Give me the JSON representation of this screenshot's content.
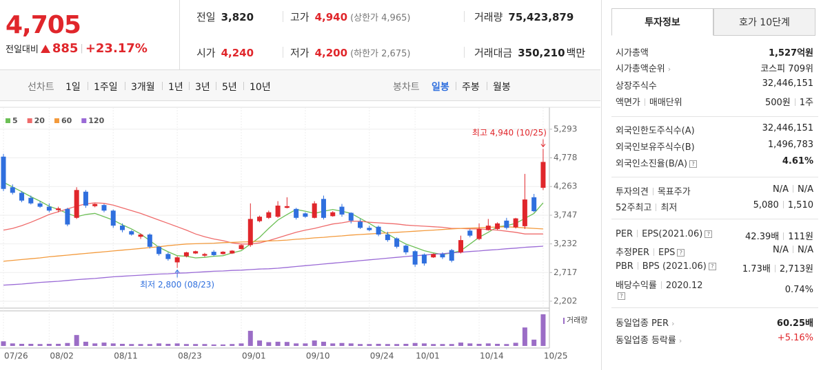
{
  "header": {
    "price": "4,705",
    "change_label": "전일대비",
    "change": "885",
    "rate": "+23.17%"
  },
  "stats": [
    {
      "label": "전일",
      "value": "3,820"
    },
    {
      "label": "고가",
      "value": "4,940",
      "note": "(상한가 4,965)"
    },
    {
      "label": "거래량",
      "value": "75,423,879"
    },
    {
      "label": "시가",
      "value": "4,240"
    },
    {
      "label": "저가",
      "value": "4,200",
      "note": "(하한가 2,675)"
    },
    {
      "label": "거래대금",
      "value": "350,210",
      "unit": "백만"
    }
  ],
  "toolbar": {
    "line_label": "선차트",
    "periods": [
      "1일",
      "1주일",
      "3개월",
      "1년",
      "3년",
      "5년",
      "10년"
    ],
    "candle_label": "봉차트",
    "candle_periods": [
      "일봉",
      "주봉",
      "월봉"
    ]
  },
  "chart_data": {
    "type": "candlestick",
    "categories": [
      "07/26",
      null,
      null,
      null,
      null,
      "08/02",
      null,
      null,
      null,
      null,
      null,
      null,
      "08/11",
      null,
      null,
      null,
      null,
      null,
      null,
      "08/23",
      null,
      null,
      null,
      null,
      null,
      null,
      "09/01",
      null,
      null,
      null,
      null,
      null,
      null,
      "09/10",
      null,
      null,
      null,
      null,
      null,
      null,
      "09/24",
      null,
      null,
      null,
      null,
      "10/01",
      null,
      null,
      null,
      null,
      null,
      null,
      "10/14",
      null,
      null,
      null,
      null,
      null,
      null,
      "10/25"
    ],
    "open": [
      4800,
      4250,
      4150,
      4060,
      3960,
      3900,
      3840,
      3860,
      3700,
      4170,
      3910,
      3930,
      3830,
      3560,
      3460,
      3360,
      3400,
      3180,
      3050,
      2900,
      3010,
      3060,
      3020,
      3090,
      3050,
      3060,
      3140,
      3210,
      3640,
      3700,
      3720,
      3880,
      3860,
      3780,
      3700,
      4040,
      3730,
      3900,
      3790,
      3630,
      3520,
      3540,
      3400,
      3330,
      3200,
      3100,
      3040,
      2990,
      3050,
      3120,
      3080,
      3470,
      3320,
      3480,
      3500,
      3650,
      3530,
      3550,
      4070,
      4240
    ],
    "high": [
      4850,
      4300,
      4180,
      4100,
      4000,
      3960,
      3900,
      3880,
      4250,
      4200,
      3960,
      3950,
      3850,
      3600,
      3480,
      3420,
      3420,
      3200,
      3080,
      3010,
      3090,
      3110,
      3070,
      3120,
      3100,
      3120,
      3220,
      3960,
      3740,
      3830,
      4000,
      4070,
      3880,
      3800,
      4000,
      4100,
      3820,
      3950,
      3800,
      3680,
      3560,
      3560,
      3450,
      3350,
      3220,
      3120,
      3060,
      3060,
      3080,
      3140,
      3380,
      3500,
      3600,
      3680,
      3620,
      3700,
      3700,
      4490,
      4130,
      4940
    ],
    "low": [
      4180,
      4120,
      3980,
      3940,
      3880,
      3800,
      3800,
      3550,
      3680,
      3880,
      3890,
      3800,
      3520,
      3440,
      3380,
      3320,
      3150,
      3020,
      2930,
      2800,
      2990,
      3050,
      3000,
      3010,
      3040,
      3050,
      3130,
      3180,
      3620,
      3680,
      3700,
      3870,
      3670,
      3700,
      3690,
      3670,
      3720,
      3720,
      3600,
      3500,
      3460,
      3370,
      3270,
      3150,
      3040,
      2820,
      2840,
      2980,
      2960,
      2900,
      3060,
      3350,
      3300,
      3470,
      3480,
      3490,
      3510,
      3500,
      3800,
      4200
    ],
    "close": [
      4220,
      4150,
      4010,
      3960,
      3900,
      3830,
      3870,
      3580,
      4200,
      3920,
      3950,
      3830,
      3560,
      3480,
      3400,
      3400,
      3180,
      3050,
      2960,
      2990,
      3080,
      3100,
      3050,
      3030,
      3090,
      3110,
      3210,
      3680,
      3720,
      3800,
      3920,
      3910,
      3700,
      3720,
      3960,
      3700,
      3800,
      3760,
      3650,
      3520,
      3480,
      3400,
      3300,
      3180,
      3080,
      2860,
      2880,
      3050,
      2990,
      2930,
      3300,
      3380,
      3500,
      3560,
      3600,
      3520,
      3690,
      4030,
      3820,
      4705
    ],
    "up_color": "#e0262b",
    "down_color": "#2f6fde",
    "volume": [
      11000000,
      6000000,
      5000000,
      5000000,
      4500000,
      5000000,
      5000000,
      7000000,
      26000000,
      10000000,
      6000000,
      8000000,
      6000000,
      5000000,
      4500000,
      4500000,
      4500000,
      6000000,
      5000000,
      6000000,
      4500000,
      4500000,
      4500000,
      3500000,
      3500000,
      4500000,
      6000000,
      36000000,
      13000000,
      9000000,
      10000000,
      9500000,
      6000000,
      6000000,
      13000000,
      10000000,
      6000000,
      7000000,
      6000000,
      4500000,
      4500000,
      5000000,
      4500000,
      4500000,
      5000000,
      7000000,
      6000000,
      4500000,
      4500000,
      4500000,
      8000000,
      6000000,
      5000000,
      6000000,
      5000000,
      4500000,
      7500000,
      44000000,
      15000000,
      75423879
    ],
    "volume_label": "거래량",
    "volume_color": "#9b6dc6",
    "series": [
      {
        "name": "5",
        "color": "#6cbf55",
        "values": [
          4340,
          4255,
          4170,
          4080,
          4000,
          3910,
          3850,
          3780,
          3720,
          3760,
          3780,
          3720,
          3660,
          3575,
          3500,
          3410,
          3290,
          3170,
          3090,
          3020,
          3010,
          2980,
          2990,
          3010,
          3020,
          3070,
          3110,
          3230,
          3350,
          3510,
          3660,
          3760,
          3850,
          3820,
          3780,
          3820,
          3850,
          3820,
          3780,
          3690,
          3600,
          3500,
          3410,
          3315,
          3230,
          3170,
          3110,
          3070,
          3040,
          3070,
          3110,
          3230,
          3350,
          3440,
          3540,
          3560,
          3600,
          3690,
          3780,
          3970
        ]
      },
      {
        "name": "20",
        "color": "#ef6b6b",
        "values": [
          3480,
          3510,
          3560,
          3620,
          3690,
          3760,
          3810,
          3860,
          3910,
          3950,
          3970,
          3960,
          3930,
          3880,
          3830,
          3780,
          3720,
          3660,
          3600,
          3540,
          3480,
          3410,
          3360,
          3320,
          3290,
          3250,
          3230,
          3230,
          3250,
          3290,
          3340,
          3390,
          3440,
          3480,
          3510,
          3550,
          3590,
          3610,
          3640,
          3640,
          3620,
          3610,
          3600,
          3590,
          3570,
          3560,
          3550,
          3540,
          3530,
          3510,
          3510,
          3500,
          3500,
          3490,
          3480,
          3460,
          3440,
          3410,
          3410,
          3410
        ]
      },
      {
        "name": "60",
        "color": "#f39a3c",
        "values": [
          2920,
          2935,
          2950,
          2965,
          2980,
          3000,
          3015,
          3030,
          3045,
          3060,
          3075,
          3090,
          3105,
          3120,
          3135,
          3150,
          3165,
          3180,
          3200,
          3215,
          3230,
          3235,
          3240,
          3245,
          3255,
          3260,
          3265,
          3270,
          3280,
          3285,
          3290,
          3300,
          3315,
          3325,
          3340,
          3350,
          3365,
          3375,
          3390,
          3400,
          3410,
          3420,
          3430,
          3440,
          3450,
          3460,
          3470,
          3480,
          3490,
          3500,
          3510,
          3515,
          3520,
          3530,
          3535,
          3540,
          3530,
          3520,
          3510,
          3500
        ]
      },
      {
        "name": "120",
        "color": "#9a6ad6",
        "values": [
          2490,
          2500,
          2510,
          2525,
          2540,
          2550,
          2560,
          2575,
          2590,
          2600,
          2610,
          2625,
          2640,
          2650,
          2660,
          2670,
          2680,
          2690,
          2695,
          2705,
          2710,
          2720,
          2730,
          2740,
          2745,
          2755,
          2760,
          2770,
          2780,
          2785,
          2795,
          2810,
          2825,
          2840,
          2855,
          2870,
          2885,
          2900,
          2915,
          2930,
          2945,
          2960,
          2975,
          2990,
          3005,
          3020,
          3030,
          3045,
          3055,
          3070,
          3080,
          3095,
          3105,
          3120,
          3130,
          3145,
          3155,
          3170,
          3180,
          3190
        ]
      }
    ],
    "ylim": [
      2090,
      5440
    ],
    "yticks": [
      {
        "value": 2202,
        "label": "2,202"
      },
      {
        "value": 2717,
        "label": "2,717"
      },
      {
        "value": 3232,
        "label": "3,232"
      },
      {
        "value": 3747,
        "label": "3,747"
      },
      {
        "value": 4263,
        "label": "4,263"
      },
      {
        "value": 4778,
        "label": "4,778"
      },
      {
        "value": 5293,
        "label": "5,293"
      }
    ],
    "grid": true,
    "annotations": {
      "high": "최고 4,940 (10/25)",
      "low": "최저 2,800 (08/23)"
    }
  },
  "info": {
    "tabs": [
      "투자정보",
      "호가 10단계"
    ],
    "groups": [
      [
        {
          "label": [
            "시가총액"
          ],
          "value": [
            "1,527억원"
          ],
          "bold": true
        },
        {
          "label": [
            "시가총액순위"
          ],
          "value": [
            "코스피 709위"
          ],
          "arrow": true
        },
        {
          "label": [
            "상장주식수"
          ],
          "value": [
            "32,446,151"
          ]
        },
        {
          "label": [
            "액면가",
            "매매단위"
          ],
          "value": [
            "500원",
            "1주"
          ]
        }
      ],
      [
        {
          "label": [
            "외국인한도주식수(A)"
          ],
          "value": [
            "32,446,151"
          ]
        },
        {
          "label": [
            "외국인보유주식수(B)"
          ],
          "value": [
            "1,496,783"
          ]
        },
        {
          "label": [
            "외국인소진율(B/A)"
          ],
          "value": [
            "4.61%"
          ],
          "bold": true,
          "help": true
        }
      ],
      [
        {
          "label": [
            "투자의견",
            "목표주가"
          ],
          "value": [
            "N/A",
            "N/A"
          ]
        },
        {
          "label": [
            "52주최고",
            "최저"
          ],
          "value": [
            "5,080",
            "1,510"
          ]
        }
      ],
      [
        {
          "label": [
            "PER",
            "EPS(2021.06)"
          ],
          "value": [
            "42.39배",
            "111원"
          ],
          "help": true
        },
        {
          "label": [
            "추정PER",
            "EPS"
          ],
          "value": [
            "N/A",
            "N/A"
          ],
          "help": true
        },
        {
          "label": [
            "PBR",
            "BPS (2021.06)"
          ],
          "value": [
            "1.73배",
            "2,713원"
          ],
          "help": true
        },
        {
          "label": [
            "배당수익률",
            "2020.12"
          ],
          "value": [
            "0.74%"
          ],
          "help": true,
          "tall": true
        }
      ],
      [
        {
          "label": [
            "동일업종 PER"
          ],
          "value": [
            "60.25배"
          ],
          "bold": true,
          "arrow": true
        },
        {
          "label": [
            "동일업종 등락률"
          ],
          "value": [
            "+5.16%"
          ],
          "red": true,
          "arrow": true
        }
      ]
    ]
  }
}
